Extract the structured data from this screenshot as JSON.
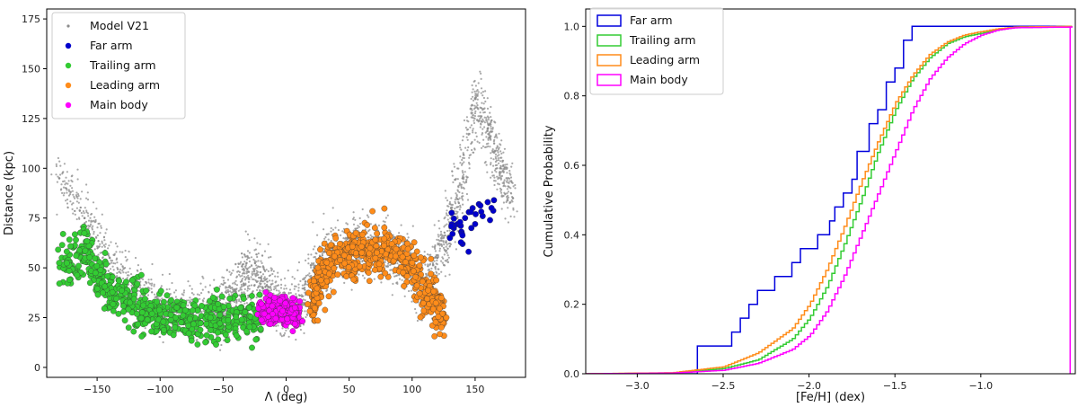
{
  "chart_data": [
    {
      "type": "scatter",
      "xlabel": "Λ (deg)",
      "ylabel": "Distance (kpc)",
      "xlim": [
        -190,
        190
      ],
      "ylim": [
        -5,
        180
      ],
      "xticks": [
        -150,
        -100,
        -50,
        0,
        50,
        100,
        150
      ],
      "yticks": [
        0,
        25,
        50,
        75,
        100,
        125,
        150,
        175
      ],
      "legend_position": "top-left",
      "legend": [
        "Model V21",
        "Far arm",
        "Trailing arm",
        "Leading arm",
        "Main body"
      ],
      "series": [
        {
          "name": "Model V21",
          "color": "#8c8c8c",
          "marker": "small dot",
          "x": [
            -180,
            -160,
            -140,
            -120,
            -100,
            -80,
            -60,
            -50,
            -40,
            -30,
            -20,
            -10,
            0,
            10,
            20,
            30,
            40,
            50,
            60,
            70,
            80,
            90,
            100,
            110,
            120,
            130,
            140,
            150,
            160,
            170,
            180
          ],
          "y": [
            95,
            75,
            55,
            40,
            32,
            28,
            27,
            28,
            38,
            48,
            45,
            35,
            30,
            30,
            45,
            52,
            58,
            60,
            60,
            60,
            60,
            55,
            48,
            38,
            55,
            70,
            95,
            135,
            120,
            100,
            85
          ]
        },
        {
          "name": "Far arm",
          "color": "#0000cc",
          "x": [
            130,
            133,
            136,
            139,
            142,
            145,
            148,
            150,
            153,
            156,
            160,
            165,
            140,
            147
          ],
          "y": [
            65,
            70,
            72,
            68,
            75,
            78,
            80,
            72,
            82,
            76,
            83,
            84,
            62,
            70
          ]
        },
        {
          "name": "Trailing arm",
          "color": "#33cc33",
          "x": [
            -178,
            -170,
            -160,
            -150,
            -140,
            -130,
            -120,
            -110,
            -100,
            -90,
            -80,
            -70,
            -60,
            -50,
            -40,
            -30,
            -20
          ],
          "y": [
            55,
            50,
            60,
            45,
            40,
            35,
            30,
            28,
            26,
            25,
            24,
            24,
            24,
            24,
            24,
            24,
            23
          ]
        },
        {
          "name": "Leading arm",
          "color": "#ff8c1a",
          "x": [
            20,
            25,
            30,
            40,
            50,
            60,
            70,
            80,
            90,
            100,
            110,
            120,
            125
          ],
          "y": [
            30,
            40,
            50,
            55,
            57,
            58,
            59,
            58,
            55,
            50,
            40,
            30,
            27
          ]
        },
        {
          "name": "Main body",
          "color": "#ff00ff",
          "x": [
            -20,
            -15,
            -10,
            -5,
            0,
            5,
            10
          ],
          "y": [
            28,
            30,
            27,
            30,
            28,
            26,
            28
          ]
        }
      ]
    },
    {
      "type": "line",
      "subtype": "step (cumulative distribution)",
      "xlabel": "[Fe/H] (dex)",
      "ylabel": "Cumulative Probability",
      "xlim": [
        -3.3,
        -0.45
      ],
      "ylim": [
        0,
        1.05
      ],
      "xticks": [
        -3.0,
        -2.5,
        -2.0,
        -1.5,
        -1.0
      ],
      "xtick_labels": [
        "−3.0",
        "−2.5",
        "−2.0",
        "−1.5",
        "−1.0"
      ],
      "yticks": [
        0.0,
        0.2,
        0.4,
        0.6,
        0.8,
        1.0
      ],
      "ytick_labels": [
        "0.0",
        "0.2",
        "0.4",
        "0.6",
        "0.8",
        "1.0"
      ],
      "legend_position": "top-left",
      "legend": [
        "Far arm",
        "Trailing arm",
        "Leading arm",
        "Main body"
      ],
      "series": [
        {
          "name": "Far arm",
          "color": "#0000dd",
          "x": [
            -3.3,
            -2.65,
            -2.65,
            -2.45,
            -2.45,
            -2.4,
            -2.4,
            -2.35,
            -2.35,
            -2.3,
            -2.3,
            -2.2,
            -2.2,
            -2.1,
            -2.1,
            -2.05,
            -2.05,
            -1.95,
            -1.95,
            -1.88,
            -1.88,
            -1.85,
            -1.85,
            -1.8,
            -1.8,
            -1.75,
            -1.75,
            -1.72,
            -1.72,
            -1.65,
            -1.65,
            -1.6,
            -1.6,
            -1.55,
            -1.55,
            -1.5,
            -1.5,
            -1.45,
            -1.45,
            -1.4,
            -1.4,
            -0.47
          ],
          "y": [
            0,
            0,
            0.08,
            0.08,
            0.12,
            0.12,
            0.16,
            0.16,
            0.2,
            0.2,
            0.24,
            0.24,
            0.28,
            0.28,
            0.32,
            0.32,
            0.36,
            0.36,
            0.4,
            0.4,
            0.44,
            0.44,
            0.48,
            0.48,
            0.52,
            0.52,
            0.56,
            0.56,
            0.64,
            0.64,
            0.72,
            0.72,
            0.76,
            0.76,
            0.84,
            0.84,
            0.88,
            0.88,
            0.96,
            0.96,
            1.0,
            1.0
          ]
        },
        {
          "name": "Trailing arm",
          "color": "#33cc33",
          "x": [
            -3.3,
            -2.8,
            -2.5,
            -2.3,
            -2.1,
            -2.0,
            -1.9,
            -1.8,
            -1.7,
            -1.6,
            -1.5,
            -1.4,
            -1.3,
            -1.2,
            -1.1,
            -1.0,
            -0.9,
            -0.8,
            -0.47
          ],
          "y": [
            0,
            0.002,
            0.015,
            0.04,
            0.1,
            0.16,
            0.25,
            0.37,
            0.5,
            0.64,
            0.76,
            0.85,
            0.91,
            0.95,
            0.97,
            0.98,
            0.99,
            0.997,
            1.0
          ]
        },
        {
          "name": "Leading arm",
          "color": "#ff8c1a",
          "x": [
            -3.3,
            -2.8,
            -2.5,
            -2.3,
            -2.1,
            -2.0,
            -1.9,
            -1.8,
            -1.7,
            -1.6,
            -1.5,
            -1.4,
            -1.3,
            -1.2,
            -1.1,
            -1.0,
            -0.9,
            -0.8,
            -0.47
          ],
          "y": [
            0,
            0.003,
            0.02,
            0.06,
            0.13,
            0.2,
            0.3,
            0.42,
            0.55,
            0.67,
            0.78,
            0.86,
            0.92,
            0.955,
            0.975,
            0.985,
            0.993,
            0.998,
            1.0
          ]
        },
        {
          "name": "Main body",
          "color": "#ff00ff",
          "x": [
            -3.3,
            -2.8,
            -2.5,
            -2.3,
            -2.1,
            -2.0,
            -1.9,
            -1.8,
            -1.7,
            -1.6,
            -1.5,
            -1.4,
            -1.3,
            -1.2,
            -1.1,
            -1.0,
            -0.9,
            -0.8,
            -0.48,
            -0.48,
            -0.47
          ],
          "y": [
            0,
            0.002,
            0.01,
            0.03,
            0.07,
            0.11,
            0.18,
            0.28,
            0.4,
            0.52,
            0.64,
            0.76,
            0.85,
            0.91,
            0.95,
            0.975,
            0.99,
            0.996,
            0.998,
            1.0,
            1.0
          ]
        }
      ]
    }
  ]
}
